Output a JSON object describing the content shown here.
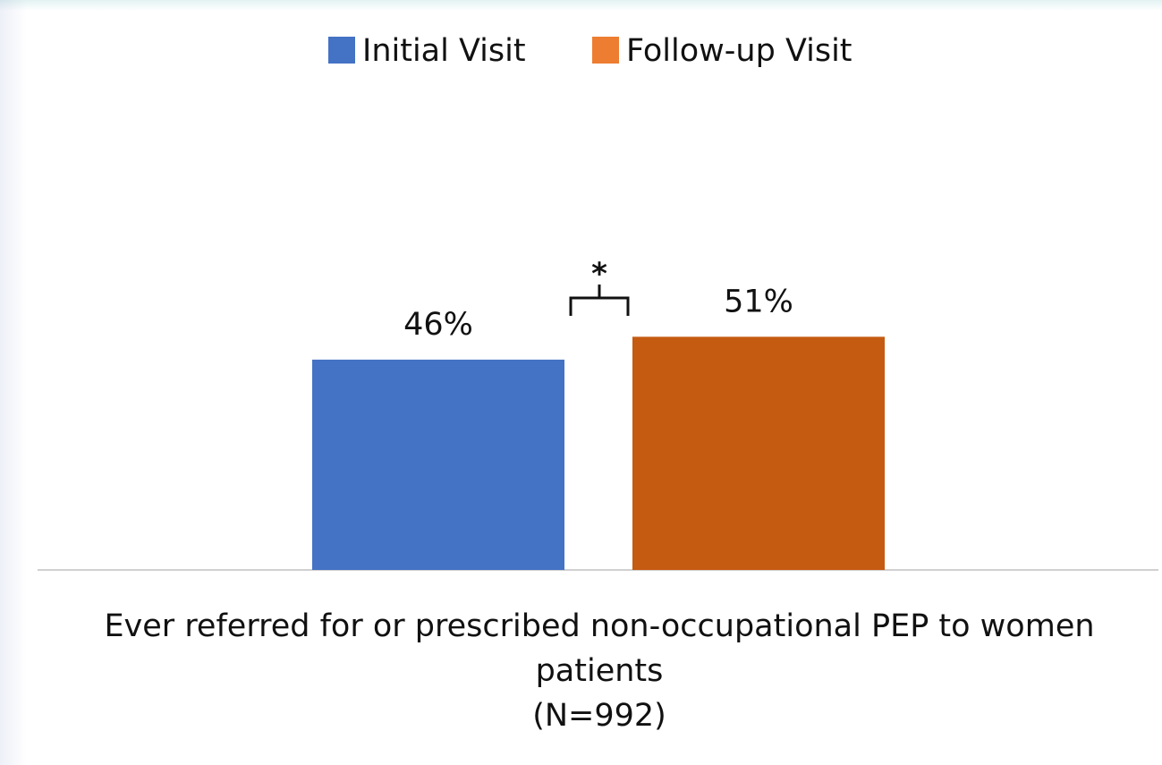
{
  "chart_data": {
    "type": "bar",
    "categories": [
      "Ever referred for or prescribed non-occupational PEP to women patients\n(N=992)"
    ],
    "series": [
      {
        "name": "Initial Visit",
        "color": "#4472c4",
        "legend_color": "#4472c4",
        "values": [
          46
        ],
        "value_labels": [
          "46%"
        ]
      },
      {
        "name": "Follow-up Visit",
        "color": "#c55a11",
        "legend_color": "#ed7d31",
        "values": [
          51
        ],
        "value_labels": [
          "51%"
        ]
      }
    ],
    "ylim": [
      0,
      100
    ],
    "annotations": [
      "*"
    ]
  }
}
